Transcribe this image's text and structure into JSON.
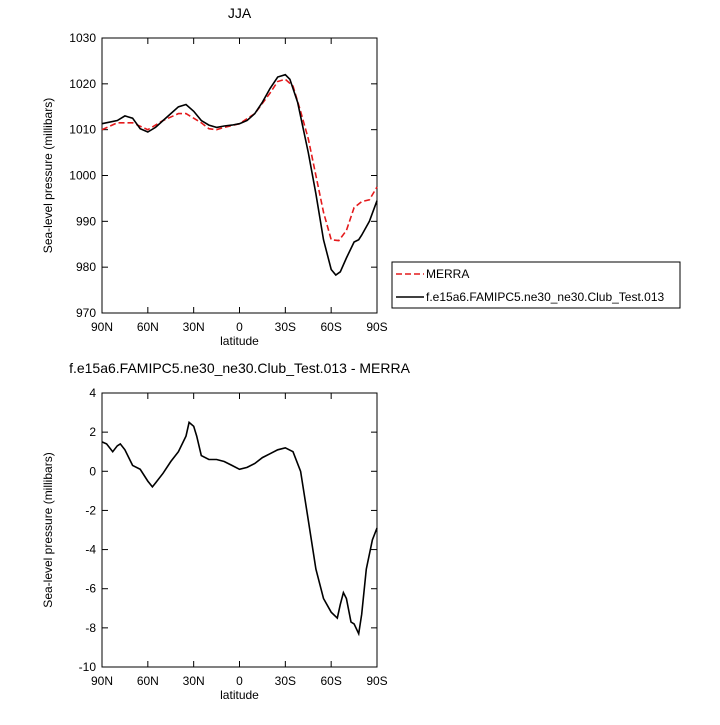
{
  "chart_data": [
    {
      "type": "line",
      "title": "JJA",
      "xlabel": "latitude",
      "ylabel": "Sea-level pressure (millibars)",
      "xlim": [
        90,
        -90
      ],
      "xticks": [
        {
          "value": 90,
          "label": "90N"
        },
        {
          "value": 60,
          "label": "60N"
        },
        {
          "value": 30,
          "label": "30N"
        },
        0,
        {
          "value": -30,
          "label": "30S"
        },
        {
          "value": -60,
          "label": "60S"
        },
        {
          "value": -90,
          "label": "90S"
        }
      ],
      "ylim": [
        970,
        1030
      ],
      "yticks": [
        970,
        980,
        990,
        1000,
        1010,
        1020,
        1030
      ],
      "legend": "outside-right",
      "series": [
        {
          "name": "MERRA",
          "color": "#e41a1c",
          "dash": true,
          "x": [
            90,
            80,
            70,
            60,
            50,
            40,
            35,
            30,
            25,
            20,
            15,
            10,
            0,
            -10,
            -20,
            -25,
            -30,
            -35,
            -40,
            -45,
            -50,
            -55,
            -60,
            -65,
            -70,
            -75,
            -80,
            -85,
            -90
          ],
          "values": [
            1010,
            1011.5,
            1011.5,
            1010,
            1012,
            1013.5,
            1013.5,
            1012.5,
            1011.5,
            1010.2,
            1010,
            1010.5,
            1011.3,
            1013.5,
            1018,
            1020.5,
            1021,
            1019.5,
            1014,
            1008,
            1000,
            992,
            986,
            985.8,
            988,
            993,
            994.3,
            994.7,
            997.5
          ]
        },
        {
          "name": "f.e15a6.FAMIPC5.ne30_ne30.Club_Test.013",
          "color": "#000000",
          "dash": false,
          "x": [
            90,
            80,
            75,
            70,
            65,
            60,
            55,
            50,
            45,
            40,
            35,
            30,
            25,
            20,
            15,
            10,
            5,
            0,
            -5,
            -10,
            -15,
            -20,
            -25,
            -30,
            -33,
            -38,
            -45,
            -50,
            -55,
            -60,
            -63,
            -66,
            -70,
            -75,
            -78,
            -80,
            -85,
            -90
          ],
          "values": [
            1011.3,
            1012,
            1013,
            1012.5,
            1010.2,
            1009.5,
            1010.5,
            1012,
            1013.5,
            1015,
            1015.5,
            1014,
            1012,
            1011,
            1010.5,
            1010.8,
            1011,
            1011.3,
            1012,
            1013.5,
            1016,
            1019,
            1021.5,
            1022,
            1021,
            1016,
            1005,
            996,
            986,
            979.5,
            978.3,
            979,
            982,
            985.5,
            986,
            987,
            990,
            994.5
          ]
        }
      ]
    },
    {
      "type": "line",
      "title": "f.e15a6.FAMIPC5.ne30_ne30.Club_Test.013 - MERRA",
      "xlabel": "latitude",
      "ylabel": "Sea-level pressure (millibars)",
      "xlim": [
        90,
        -90
      ],
      "xticks": [
        {
          "value": 90,
          "label": "90N"
        },
        {
          "value": 60,
          "label": "60N"
        },
        {
          "value": 30,
          "label": "30N"
        },
        0,
        {
          "value": -30,
          "label": "30S"
        },
        {
          "value": -60,
          "label": "60S"
        },
        {
          "value": -90,
          "label": "90S"
        }
      ],
      "ylim": [
        -10,
        4
      ],
      "yticks": [
        -10,
        -8,
        -6,
        -4,
        -2,
        0,
        2,
        4
      ],
      "series": [
        {
          "color": "#000000",
          "dash": false,
          "x": [
            90,
            87,
            83,
            80,
            78,
            75,
            70,
            65,
            60,
            57,
            55,
            50,
            45,
            40,
            35,
            33,
            30,
            28,
            25,
            20,
            15,
            10,
            5,
            0,
            -5,
            -10,
            -15,
            -20,
            -25,
            -30,
            -35,
            -40,
            -45,
            -50,
            -55,
            -60,
            -64,
            -66,
            -68,
            -70,
            -73,
            -75,
            -78,
            -80,
            -83,
            -87,
            -90
          ],
          "values": [
            1.5,
            1.4,
            1.0,
            1.3,
            1.4,
            1.1,
            0.3,
            0.1,
            -0.5,
            -0.8,
            -0.6,
            -0.1,
            0.5,
            1.0,
            1.8,
            2.5,
            2.3,
            1.8,
            0.8,
            0.6,
            0.6,
            0.5,
            0.3,
            0.1,
            0.2,
            0.4,
            0.7,
            0.9,
            1.1,
            1.2,
            1.0,
            0.0,
            -2.5,
            -5,
            -6.5,
            -7.2,
            -7.5,
            -6.8,
            -6.2,
            -6.5,
            -7.7,
            -7.8,
            -8.3,
            -7.3,
            -5,
            -3.5,
            -2.9
          ]
        }
      ]
    }
  ]
}
